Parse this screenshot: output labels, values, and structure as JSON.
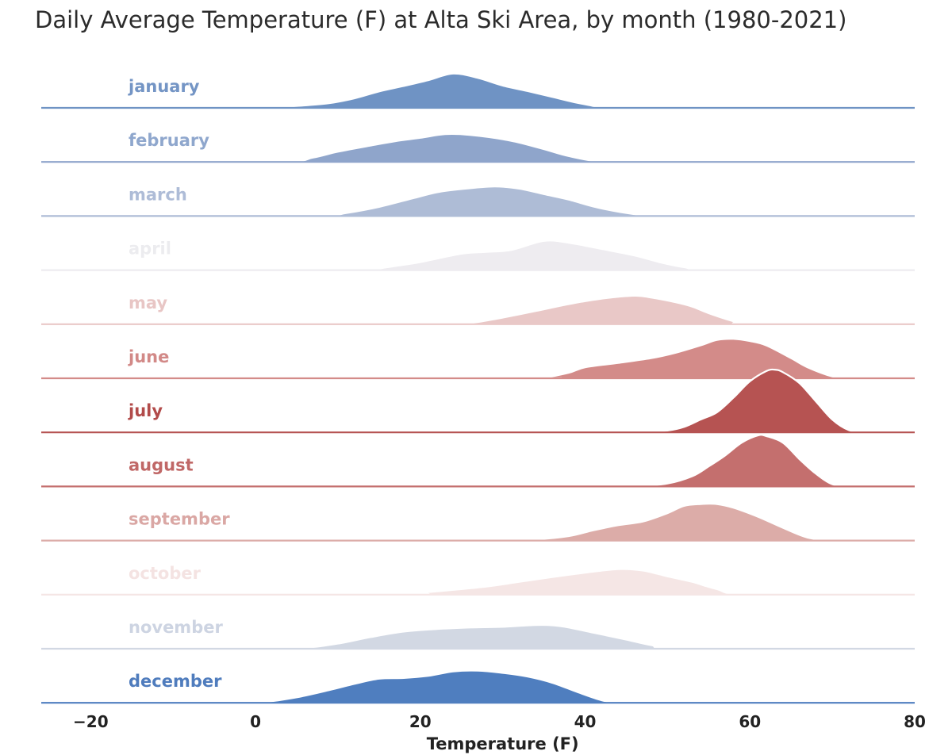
{
  "chart_data": {
    "type": "area",
    "title": "Daily Average Temperature (F) at Alta Ski Area, by month (1980-2021)",
    "xlabel": "Temperature (F)",
    "xlim": [
      -26,
      80
    ],
    "xticks": [
      -20,
      0,
      20,
      40,
      60,
      80
    ],
    "xtick_labels": [
      "−20",
      "0",
      "20",
      "40",
      "60",
      "80"
    ],
    "value_unit": "relative density",
    "grid": false,
    "series": [
      {
        "name": "january",
        "color": "#6f93c4",
        "label_color": "#7495c5",
        "points": [
          [
            -26,
            0
          ],
          [
            0,
            0
          ],
          [
            2,
            0.01
          ],
          [
            5,
            0.05
          ],
          [
            9,
            0.13
          ],
          [
            12,
            0.26
          ],
          [
            15,
            0.45
          ],
          [
            18,
            0.6
          ],
          [
            21,
            0.76
          ],
          [
            24,
            0.94
          ],
          [
            27,
            0.82
          ],
          [
            30,
            0.61
          ],
          [
            33,
            0.46
          ],
          [
            36,
            0.3
          ],
          [
            39,
            0.14
          ],
          [
            42,
            0.02
          ],
          [
            44,
            0
          ],
          [
            80,
            0
          ]
        ]
      },
      {
        "name": "february",
        "color": "#8fa5cb",
        "label_color": "#8fa7cd",
        "points": [
          [
            -26,
            0
          ],
          [
            -17,
            -0.02
          ],
          [
            3,
            0
          ],
          [
            7,
            0.12
          ],
          [
            10,
            0.28
          ],
          [
            14,
            0.45
          ],
          [
            17,
            0.57
          ],
          [
            20,
            0.66
          ],
          [
            23,
            0.76
          ],
          [
            26,
            0.74
          ],
          [
            31,
            0.58
          ],
          [
            35,
            0.35
          ],
          [
            38,
            0.16
          ],
          [
            42,
            0
          ],
          [
            47,
            -0.02
          ],
          [
            51,
            0
          ],
          [
            80,
            0
          ]
        ]
      },
      {
        "name": "march",
        "color": "#aebcd6",
        "label_color": "#aebcd7",
        "points": [
          [
            -26,
            0
          ],
          [
            -4,
            -0.02
          ],
          [
            8,
            0
          ],
          [
            11,
            0.08
          ],
          [
            15,
            0.25
          ],
          [
            19,
            0.48
          ],
          [
            22,
            0.65
          ],
          [
            25,
            0.74
          ],
          [
            29,
            0.81
          ],
          [
            32,
            0.75
          ],
          [
            35,
            0.6
          ],
          [
            38,
            0.45
          ],
          [
            41,
            0.26
          ],
          [
            44,
            0.12
          ],
          [
            48,
            0
          ],
          [
            52,
            0
          ],
          [
            58,
            -0.02
          ],
          [
            80,
            0
          ]
        ]
      },
      {
        "name": "april",
        "color": "#eeecf0",
        "label_color": "#ececef",
        "points": [
          [
            -26,
            0
          ],
          [
            3,
            0
          ],
          [
            13,
            0
          ],
          [
            16,
            0.08
          ],
          [
            20,
            0.22
          ],
          [
            25,
            0.45
          ],
          [
            28,
            0.5
          ],
          [
            31,
            0.55
          ],
          [
            35,
            0.8
          ],
          [
            38,
            0.75
          ],
          [
            42,
            0.58
          ],
          [
            46,
            0.4
          ],
          [
            49,
            0.22
          ],
          [
            52,
            0.08
          ],
          [
            56,
            0
          ],
          [
            80,
            0
          ]
        ]
      },
      {
        "name": "may",
        "color": "#e9c8c7",
        "label_color": "#e8c6c5",
        "points": [
          [
            -26,
            0
          ],
          [
            22,
            0
          ],
          [
            25,
            0.01
          ],
          [
            27,
            0.06
          ],
          [
            30,
            0.18
          ],
          [
            34,
            0.36
          ],
          [
            38,
            0.55
          ],
          [
            42,
            0.7
          ],
          [
            46,
            0.78
          ],
          [
            48,
            0.73
          ],
          [
            51,
            0.6
          ],
          [
            53,
            0.48
          ],
          [
            55,
            0.3
          ],
          [
            58,
            0.08
          ],
          [
            60,
            0
          ],
          [
            80,
            0
          ]
        ]
      },
      {
        "name": "june",
        "color": "#d38b89",
        "label_color": "#d28987",
        "points": [
          [
            -26,
            0
          ],
          [
            32,
            0
          ],
          [
            35,
            0.02
          ],
          [
            38,
            0.15
          ],
          [
            40,
            0.3
          ],
          [
            44,
            0.42
          ],
          [
            48,
            0.55
          ],
          [
            51,
            0.7
          ],
          [
            54,
            0.9
          ],
          [
            56,
            1.05
          ],
          [
            58,
            1.08
          ],
          [
            60,
            1.02
          ],
          [
            62,
            0.9
          ],
          [
            65,
            0.55
          ],
          [
            67,
            0.3
          ],
          [
            70,
            0.05
          ],
          [
            72,
            0
          ],
          [
            80,
            0
          ]
        ]
      },
      {
        "name": "july",
        "color": "#b65352",
        "label_color": "#b24b4a",
        "points": [
          [
            -26,
            0
          ],
          [
            33,
            0
          ],
          [
            40,
            -0.02
          ],
          [
            47,
            0
          ],
          [
            50,
            0.05
          ],
          [
            52,
            0.15
          ],
          [
            54,
            0.35
          ],
          [
            56,
            0.55
          ],
          [
            58,
            0.95
          ],
          [
            60,
            1.4
          ],
          [
            62,
            1.68
          ],
          [
            63,
            1.72
          ],
          [
            64,
            1.65
          ],
          [
            66,
            1.35
          ],
          [
            68,
            0.85
          ],
          [
            70,
            0.35
          ],
          [
            72,
            0.06
          ],
          [
            74,
            0
          ],
          [
            77,
            -0.02
          ],
          [
            80,
            0
          ]
        ]
      },
      {
        "name": "august",
        "color": "#c46f6e",
        "label_color": "#c06867",
        "points": [
          [
            -26,
            0
          ],
          [
            35,
            0
          ],
          [
            40,
            -0.02
          ],
          [
            46,
            0
          ],
          [
            50,
            0.08
          ],
          [
            53,
            0.28
          ],
          [
            55,
            0.55
          ],
          [
            57,
            0.85
          ],
          [
            59,
            1.2
          ],
          [
            61,
            1.4
          ],
          [
            62,
            1.38
          ],
          [
            64,
            1.2
          ],
          [
            66,
            0.75
          ],
          [
            68,
            0.35
          ],
          [
            70,
            0.06
          ],
          [
            72,
            0
          ],
          [
            75,
            -0.02
          ],
          [
            80,
            0
          ]
        ]
      },
      {
        "name": "september",
        "color": "#dcaca8",
        "label_color": "#daa7a4",
        "points": [
          [
            -26,
            0
          ],
          [
            17,
            -0.01
          ],
          [
            28,
            0
          ],
          [
            34,
            0.03
          ],
          [
            38,
            0.12
          ],
          [
            41,
            0.28
          ],
          [
            44,
            0.42
          ],
          [
            47,
            0.52
          ],
          [
            50,
            0.75
          ],
          [
            52,
            0.95
          ],
          [
            54,
            1.0
          ],
          [
            56,
            1.0
          ],
          [
            58,
            0.9
          ],
          [
            61,
            0.65
          ],
          [
            64,
            0.35
          ],
          [
            67,
            0.08
          ],
          [
            70,
            0
          ],
          [
            73,
            -0.02
          ],
          [
            80,
            0
          ]
        ]
      },
      {
        "name": "october",
        "color": "#f5e6e5",
        "label_color": "#f4e3e2",
        "points": [
          [
            -26,
            0
          ],
          [
            17,
            0
          ],
          [
            20,
            0.05
          ],
          [
            24,
            0.13
          ],
          [
            28,
            0.22
          ],
          [
            32,
            0.35
          ],
          [
            36,
            0.48
          ],
          [
            40,
            0.6
          ],
          [
            44,
            0.7
          ],
          [
            47,
            0.66
          ],
          [
            50,
            0.5
          ],
          [
            53,
            0.35
          ],
          [
            56,
            0.15
          ],
          [
            60,
            0
          ],
          [
            80,
            0
          ]
        ]
      },
      {
        "name": "november",
        "color": "#d2d8e3",
        "label_color": "#cdd4e2",
        "points": [
          [
            -26,
            0
          ],
          [
            2,
            0
          ],
          [
            6,
            0.02
          ],
          [
            10,
            0.14
          ],
          [
            14,
            0.32
          ],
          [
            18,
            0.47
          ],
          [
            22,
            0.54
          ],
          [
            26,
            0.58
          ],
          [
            30,
            0.6
          ],
          [
            34,
            0.65
          ],
          [
            37,
            0.62
          ],
          [
            41,
            0.44
          ],
          [
            45,
            0.25
          ],
          [
            48,
            0.1
          ],
          [
            52,
            0
          ],
          [
            80,
            0
          ]
        ]
      },
      {
        "name": "december",
        "color": "#4f7ebf",
        "label_color": "#4f7cbd",
        "points": [
          [
            -26,
            0
          ],
          [
            -21,
            -0.03
          ],
          [
            -3,
            0
          ],
          [
            1,
            0.02
          ],
          [
            5,
            0.15
          ],
          [
            9,
            0.35
          ],
          [
            12,
            0.52
          ],
          [
            15,
            0.66
          ],
          [
            18,
            0.68
          ],
          [
            21,
            0.74
          ],
          [
            24,
            0.86
          ],
          [
            27,
            0.88
          ],
          [
            30,
            0.82
          ],
          [
            33,
            0.72
          ],
          [
            36,
            0.55
          ],
          [
            39,
            0.3
          ],
          [
            42,
            0.07
          ],
          [
            44,
            0
          ],
          [
            47,
            -0.02
          ],
          [
            52,
            0
          ],
          [
            80,
            0
          ]
        ]
      }
    ]
  }
}
